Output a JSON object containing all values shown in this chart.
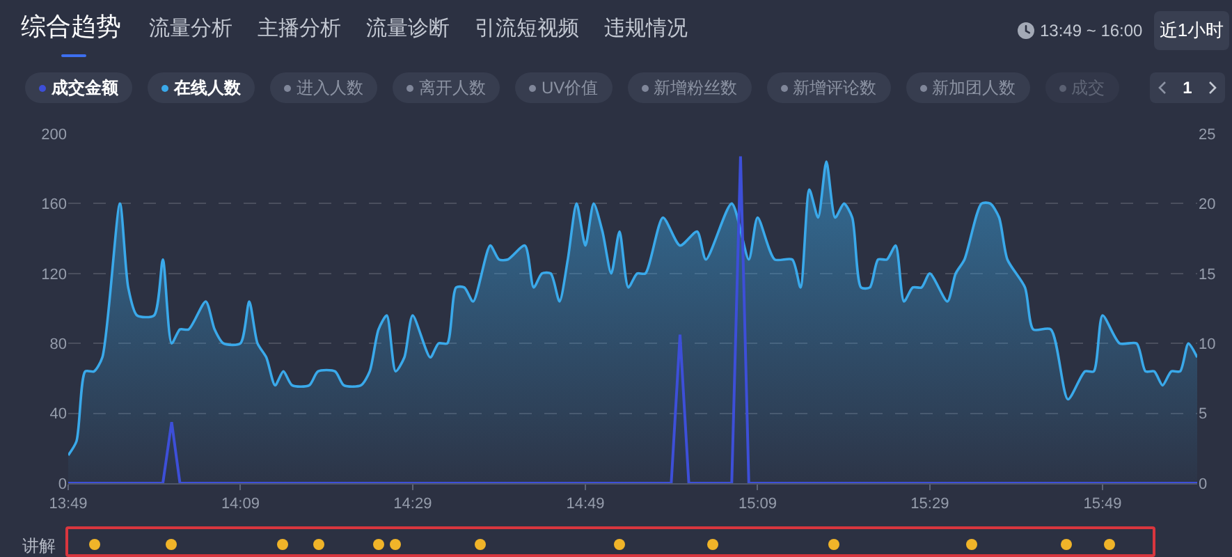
{
  "chart_data": {
    "type": "line",
    "title": "综合趋势",
    "annotations": [
      "流量分析",
      "主播分析",
      "流量诊断",
      "引流短视频",
      "违规情况",
      "13:49 ~ 16:00",
      "近1小时",
      "进入人数",
      "离开人数",
      "UV价值",
      "新增粉丝数",
      "新增评论数",
      "新加团人数",
      "成交",
      "1",
      "讲解"
    ],
    "series": [
      {
        "name": "成交金额",
        "type": "line",
        "color": "#3d4fd8",
        "x": [
          13.817,
          14.0,
          14.017,
          14.033,
          14.983,
          15.0,
          15.017,
          15.1,
          15.117,
          15.133,
          16.0
        ],
        "values": [
          0,
          0,
          35,
          0,
          0,
          85,
          0,
          0,
          187,
          0,
          0
        ]
      },
      {
        "name": "在线人数",
        "type": "area",
        "axis": "y2",
        "color": "#3aa9ea",
        "x": [
          13.817,
          13.833,
          13.85,
          13.867,
          13.883,
          13.917,
          13.933,
          13.95,
          13.983,
          14.0,
          14.017,
          14.033,
          14.05,
          14.083,
          14.1,
          14.117,
          14.15,
          14.167,
          14.183,
          14.2,
          14.217,
          14.233,
          14.25,
          14.283,
          14.3,
          14.333,
          14.35,
          14.383,
          14.4,
          14.417,
          14.433,
          14.45,
          14.467,
          14.483,
          14.517,
          14.533,
          14.55,
          14.567,
          14.583,
          14.6,
          14.633,
          14.65,
          14.667,
          14.7,
          14.717,
          14.733,
          14.75,
          14.767,
          14.783,
          14.8,
          14.817,
          14.833,
          14.85,
          14.867,
          14.883,
          14.9,
          14.917,
          14.933,
          14.967,
          15.0,
          15.033,
          15.05,
          15.1,
          15.133,
          15.15,
          15.183,
          15.217,
          15.233,
          15.25,
          15.267,
          15.283,
          15.3,
          15.317,
          15.333,
          15.35,
          15.367,
          15.383,
          15.4,
          15.417,
          15.433,
          15.45,
          15.467,
          15.483,
          15.517,
          15.533,
          15.55,
          15.583,
          15.6,
          15.617,
          15.633,
          15.667,
          15.683,
          15.717,
          15.75,
          15.783,
          15.8,
          15.817,
          15.85,
          15.883,
          15.9,
          15.917,
          15.933,
          15.95,
          15.967,
          15.983,
          16.0
        ],
        "values": [
          2,
          3,
          8,
          8,
          9,
          20,
          14,
          12,
          12,
          16,
          10,
          11,
          11,
          13,
          11,
          10,
          10,
          13,
          10,
          9,
          7,
          8,
          7,
          7,
          8,
          8,
          7,
          7,
          8,
          11,
          12,
          8,
          9,
          12,
          9,
          10,
          10,
          14,
          14,
          13,
          17,
          16,
          16,
          17,
          14,
          15,
          15,
          13,
          16,
          20,
          17,
          20,
          18,
          15,
          18,
          14,
          15,
          15,
          19,
          17,
          18,
          16,
          20,
          16,
          19,
          16,
          16,
          14,
          21,
          19,
          23,
          19,
          20,
          19,
          14,
          14,
          16,
          16,
          17,
          13,
          14,
          14,
          15,
          13,
          15,
          16,
          20,
          20,
          19,
          16,
          14,
          11,
          11,
          6,
          8,
          8,
          12,
          10,
          10,
          8,
          8,
          7,
          8,
          8,
          10,
          9
        ]
      }
    ],
    "xlim": [
      13.817,
      16.0
    ],
    "xticks": [
      {
        "value": 13.817,
        "label": "13:49"
      },
      {
        "value": 14.15,
        "label": "14:09"
      },
      {
        "value": 14.483,
        "label": "14:29"
      },
      {
        "value": 14.817,
        "label": "14:49"
      },
      {
        "value": 15.15,
        "label": "15:09"
      },
      {
        "value": 15.483,
        "label": "15:29"
      },
      {
        "value": 15.817,
        "label": "15:49"
      }
    ],
    "ylim": [
      0,
      200
    ],
    "yticks": [
      0,
      40,
      80,
      120,
      160,
      200
    ],
    "y2lim": [
      0,
      25
    ],
    "y2ticks": [
      0,
      5,
      10,
      15,
      20,
      25
    ],
    "grid": "y",
    "legend": "top left",
    "line_style": "solid"
  }
}
